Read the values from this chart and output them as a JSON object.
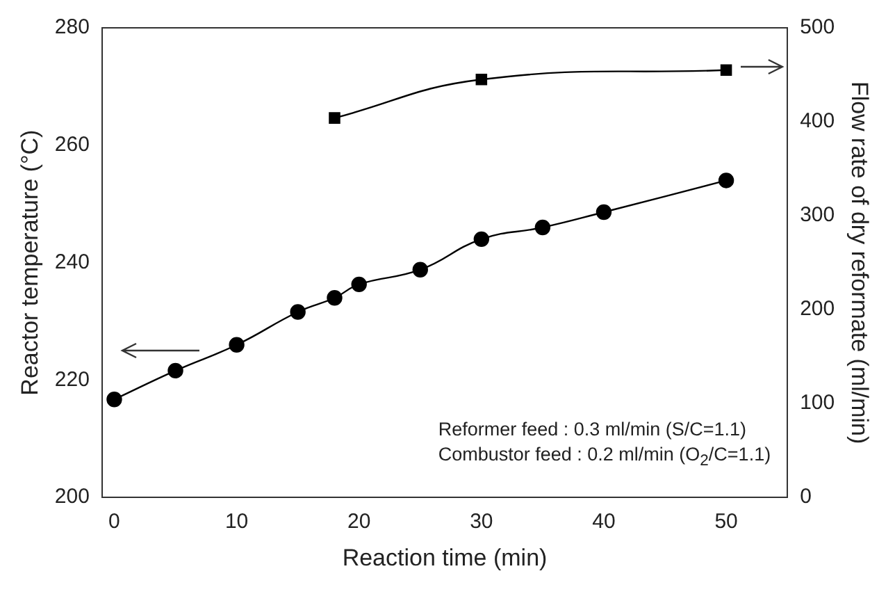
{
  "chart_data": {
    "type": "line",
    "xlabel": "Reaction time (min)",
    "ylabel": "Reactor temperature (°C)",
    "y2label": "Flow rate of dry reformate (ml/min)",
    "xlim": [
      -1,
      55
    ],
    "xticks": [
      0,
      10,
      20,
      30,
      40,
      50
    ],
    "ylim": [
      200,
      280
    ],
    "yticks": [
      200,
      220,
      240,
      260,
      280
    ],
    "y2lim": [
      0,
      500
    ],
    "y2ticks": [
      0,
      100,
      200,
      300,
      400,
      500
    ],
    "grid": false,
    "legend": false,
    "line_style": "solid",
    "series": [
      {
        "color": "#000000",
        "marker": "circle",
        "x": [
          0,
          5,
          10,
          15,
          18,
          20,
          25,
          30,
          35,
          40,
          50
        ],
        "values": [
          216.7,
          221.6,
          226,
          231.6,
          234,
          236.3,
          238.8,
          244,
          246,
          248.6,
          254
        ]
      },
      {
        "color": "#000000",
        "marker": "square",
        "axis": "y2",
        "x": [
          18,
          30,
          50
        ],
        "values": [
          404,
          445,
          455
        ]
      }
    ],
    "annotations": [
      "Reformer feed : 0.3 ml/min (S/C=1.1)",
      "Combustor feed : 0.2 ml/min (O$_{2}$/C=1.1)"
    ]
  }
}
